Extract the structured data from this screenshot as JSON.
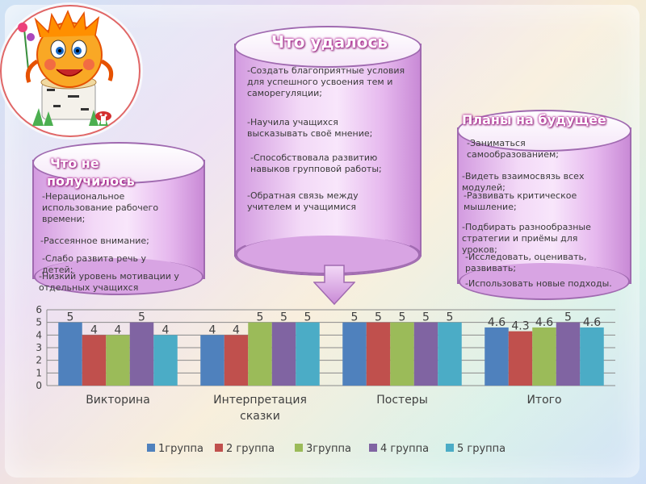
{
  "cylinders": {
    "success": {
      "title": "Что удалось",
      "items": [
        "-Создать благоприятные условия для успешного усвоения тем и саморегуляции;",
        "-Научила учащихся высказывать своё мнение;",
        "-Способствовала развитию навыков групповой работы;",
        "-Обратная связь между учителем и учащимися"
      ]
    },
    "fail": {
      "title_line1": "Что не",
      "title_line2": "получилось",
      "items": [
        "-Нерациональное использование рабочего времени;",
        "-Рассеянное внимание;",
        "-Слабо развита речь у детей;",
        "-Низкий уровень мотивации у отдельных учащихся"
      ]
    },
    "plans": {
      "title": "Планы на будущее",
      "items": [
        "-Заниматься самообразованием;",
        "-Видеть взаимосвязь всех модулей;",
        "-Развивать критическое мышление;",
        "-Подбирать разнообразные стратегии и приёмы для уроков;",
        "-Исследовать, оценивать, развивать;",
        "-Использовать новые подходы."
      ]
    }
  },
  "colors": {
    "series": [
      "#4F81BD",
      "#C0504D",
      "#9BBB59",
      "#8064A2",
      "#4BACC6"
    ],
    "title_glow": "#b8299a",
    "cylinder": "#d39be0"
  },
  "chart_data": {
    "type": "bar",
    "categories": [
      "Викторина",
      "Интерпретация сказки",
      "Постеры",
      "Итого"
    ],
    "category_lines": [
      [
        "Викторина"
      ],
      [
        "Интерпретация",
        "сказки"
      ],
      [
        "Постеры"
      ],
      [
        "Итого"
      ]
    ],
    "series": [
      {
        "name": "1группа",
        "values": [
          5,
          4,
          5,
          4.6
        ]
      },
      {
        "name": "2 группа",
        "values": [
          4,
          4,
          5,
          4.3
        ]
      },
      {
        "name": "3группа",
        "values": [
          4,
          5,
          5,
          4.6
        ]
      },
      {
        "name": "4 группа",
        "values": [
          5,
          5,
          5,
          5
        ]
      },
      {
        "name": "5 группа",
        "values": [
          4,
          5,
          5,
          4.6
        ]
      }
    ],
    "yticks": [
      "0",
      "1",
      "2",
      "3",
      "4",
      "5",
      "6"
    ],
    "ylim": [
      0,
      6
    ],
    "grid": true,
    "legend": "bottom",
    "title": "",
    "xlabel": "",
    "ylabel": ""
  }
}
